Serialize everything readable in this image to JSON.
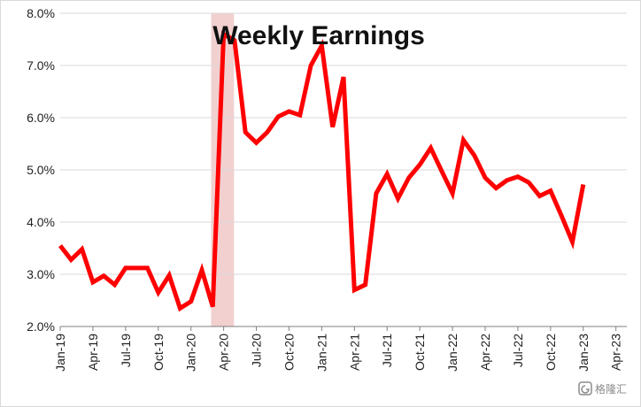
{
  "chart_data": {
    "type": "line",
    "title": "Weekly  Earnings",
    "xlabel": "",
    "ylabel": "",
    "ylim": [
      2.0,
      8.0
    ],
    "yticks": [
      2.0,
      3.0,
      4.0,
      5.0,
      6.0,
      7.0,
      8.0
    ],
    "ytick_labels": [
      "2.0%",
      "3.0%",
      "4.0%",
      "5.0%",
      "6.0%",
      "7.0%",
      "8.0%"
    ],
    "xrange": [
      "Jan-19",
      "Apr-23"
    ],
    "xtick_labels": [
      "Jan-19",
      "Apr-19",
      "Jul-19",
      "Oct-19",
      "Jan-20",
      "Apr-20",
      "Jul-20",
      "Oct-20",
      "Jan-21",
      "Apr-21",
      "Jul-21",
      "Oct-21",
      "Jan-22",
      "Apr-22",
      "Jul-22",
      "Oct-22",
      "Jan-23",
      "Apr-23"
    ],
    "grid": "horizontal",
    "legend": "none",
    "line_color": "#ff0000",
    "recession_shade": {
      "start": "Mar-20",
      "end": "Apr-20",
      "color": "#f2d0d0"
    },
    "series": [
      {
        "x": [
          "Jan-19",
          "Feb-19",
          "Mar-19",
          "Apr-19",
          "May-19",
          "Jun-19",
          "Jul-19",
          "Aug-19",
          "Sep-19",
          "Oct-19",
          "Nov-19",
          "Dec-19",
          "Jan-20",
          "Feb-20",
          "Mar-20",
          "Apr-20",
          "May-20",
          "Jun-20",
          "Jul-20",
          "Aug-20",
          "Sep-20",
          "Oct-20",
          "Nov-20",
          "Dec-20",
          "Jan-21",
          "Feb-21",
          "Mar-21",
          "Apr-21",
          "May-21",
          "Jun-21",
          "Jul-21",
          "Aug-21",
          "Sep-21",
          "Oct-21",
          "Nov-21",
          "Dec-21",
          "Jan-22",
          "Feb-22",
          "Mar-22",
          "Apr-22",
          "May-22",
          "Jun-22",
          "Jul-22",
          "Aug-22",
          "Sep-22",
          "Oct-22",
          "Nov-22",
          "Dec-22",
          "Jan-23"
        ],
        "values": [
          3.55,
          3.28,
          3.48,
          2.85,
          2.97,
          2.8,
          3.12,
          3.12,
          3.12,
          2.65,
          2.98,
          2.35,
          2.48,
          3.08,
          2.38,
          7.6,
          7.48,
          5.72,
          5.52,
          5.72,
          6.02,
          6.12,
          6.05,
          7.0,
          7.38,
          5.82,
          6.78,
          2.7,
          2.8,
          4.55,
          4.92,
          4.45,
          4.85,
          5.1,
          5.42,
          4.98,
          4.55,
          5.57,
          5.28,
          4.85,
          4.65,
          4.8,
          4.87,
          4.76,
          4.5,
          4.6,
          4.12,
          3.62,
          4.72
        ]
      }
    ]
  },
  "watermark": {
    "text": "格隆汇",
    "icon": "gelonghui-logo-icon"
  }
}
